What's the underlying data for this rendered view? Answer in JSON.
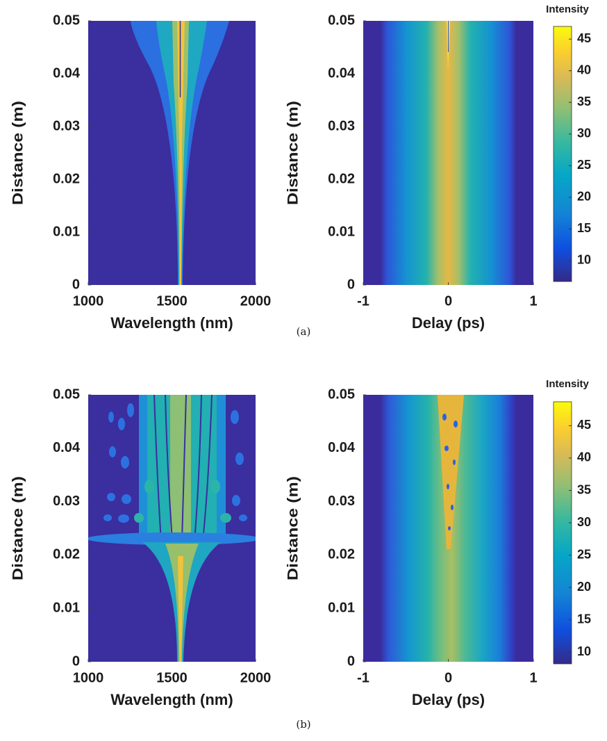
{
  "chart_data": [
    {
      "type": "heatmap",
      "xlabel": "Wavelength (nm)",
      "ylabel": "Distance (m)",
      "xlim": [
        1000,
        2000
      ],
      "xticks": [
        1000,
        1500,
        2000
      ],
      "ylim": [
        0,
        0.05
      ],
      "yticks": [
        0,
        0.01,
        0.02,
        0.03,
        0.04,
        0.05
      ]
    },
    {
      "type": "heatmap",
      "xlabel": "Delay (ps)",
      "ylabel": "Distance (m)",
      "xlim": [
        -1,
        1
      ],
      "xticks": [
        -1,
        0,
        1
      ],
      "ylim": [
        0,
        0.05
      ],
      "yticks": [
        0,
        0.01,
        0.02,
        0.03,
        0.04,
        0.05
      ],
      "colorbar": {
        "title": "Intensity",
        "lim": [
          6.7,
          47
        ],
        "ticks": [
          10,
          15,
          20,
          25,
          30,
          35,
          40,
          45
        ]
      }
    },
    {
      "type": "heatmap",
      "xlabel": "Wavelength (nm)",
      "ylabel": "Distance (m)",
      "xlim": [
        1000,
        2000
      ],
      "xticks": [
        1000,
        1500,
        2000
      ],
      "ylim": [
        0,
        0.05
      ],
      "yticks": [
        0,
        0.01,
        0.02,
        0.03,
        0.04,
        0.05
      ]
    },
    {
      "type": "heatmap",
      "xlabel": "Delay (ps)",
      "ylabel": "Distance (m)",
      "xlim": [
        -1,
        1
      ],
      "xticks": [
        -1,
        0,
        1
      ],
      "ylim": [
        0,
        0.05
      ],
      "yticks": [
        0,
        0.01,
        0.02,
        0.03,
        0.04,
        0.05
      ],
      "colorbar": {
        "title": "Intensity",
        "lim": [
          8.2,
          48.7
        ],
        "ticks": [
          10,
          15,
          20,
          25,
          30,
          35,
          40,
          45
        ]
      }
    }
  ],
  "captions": [
    "(a)",
    "(b)"
  ]
}
